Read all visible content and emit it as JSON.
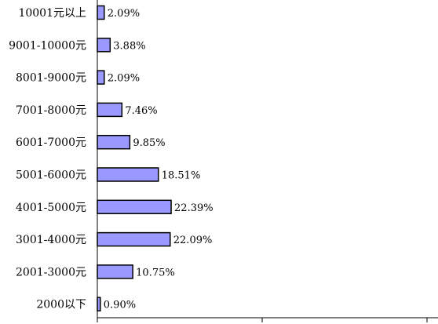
{
  "chart_data": {
    "type": "bar",
    "orientation": "horizontal",
    "categories": [
      "10001元以上",
      "9001-10000元",
      "8001-9000元",
      "7001-8000元",
      "6001-7000元",
      "5001-6000元",
      "4001-5000元",
      "3001-4000元",
      "2001-3000元",
      "2000以下"
    ],
    "values": [
      2.09,
      3.88,
      2.09,
      7.46,
      9.85,
      18.51,
      22.39,
      22.09,
      10.75,
      0.9
    ],
    "value_labels": [
      "2.09%",
      "3.88%",
      "2.09%",
      "7.46%",
      "9.85%",
      "18.51%",
      "22.39%",
      "22.09%",
      "10.75%",
      "0.90%"
    ],
    "title": "",
    "xlabel": "",
    "ylabel": "",
    "xlim": [
      0,
      100
    ],
    "grid": false,
    "legend": "none",
    "bar_color": "#9999ff",
    "bar_outline": "#000000"
  }
}
